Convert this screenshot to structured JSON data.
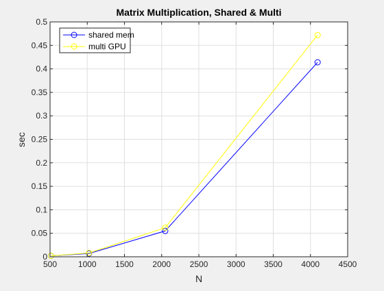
{
  "chart_data": {
    "type": "line",
    "title": "Matrix Multiplication, Shared & Multi",
    "xlabel": "N",
    "ylabel": "sec",
    "xlim": [
      500,
      4500
    ],
    "ylim": [
      0,
      0.5
    ],
    "xticks": [
      500,
      1000,
      1500,
      2000,
      2500,
      3000,
      3500,
      4000,
      4500
    ],
    "yticks": [
      0,
      0.05,
      0.1,
      0.15,
      0.2,
      0.25,
      0.3,
      0.35,
      0.4,
      0.45,
      0.5
    ],
    "xtick_labels": [
      "500",
      "1000",
      "1500",
      "2000",
      "2500",
      "3000",
      "3500",
      "4000",
      "4500"
    ],
    "ytick_labels": [
      "0",
      "0.05",
      "0.1",
      "0.15",
      "0.2",
      "0.25",
      "0.3",
      "0.35",
      "0.4",
      "0.45",
      "0.5"
    ],
    "grid": true,
    "legend_position": "top-left",
    "series": [
      {
        "name": "shared mem",
        "color": "#0000ff",
        "marker": "circle",
        "x": [
          512,
          1024,
          2048,
          4096
        ],
        "y": [
          0.002,
          0.007,
          0.055,
          0.414
        ]
      },
      {
        "name": "multi GPU",
        "color": "#ffff00",
        "marker": "circle",
        "x": [
          512,
          1024,
          2048,
          4096
        ],
        "y": [
          0.002,
          0.008,
          0.062,
          0.472
        ]
      }
    ]
  }
}
